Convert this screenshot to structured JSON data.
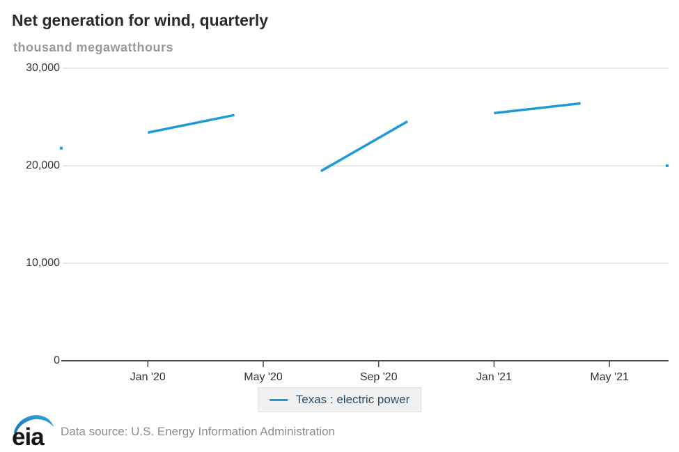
{
  "header": {
    "title": "Net generation for wind, quarterly",
    "unit_label": "thousand megawatthours"
  },
  "chart_data": {
    "type": "line",
    "title": "Net generation for wind, quarterly",
    "ylabel": "thousand megawatthours",
    "xlabel": "",
    "ylim": [
      0,
      30000
    ],
    "grid": "horizontal",
    "legend_position": "bottom-center",
    "y_ticks": [
      {
        "value": 30000,
        "label": "30,000"
      },
      {
        "value": 20000,
        "label": "20,000"
      },
      {
        "value": 10000,
        "label": "10,000"
      },
      {
        "value": 0,
        "label": "0"
      }
    ],
    "x_axis": {
      "unit": "months since Oct 2019",
      "range_months": [
        0,
        21
      ],
      "ticks": [
        {
          "month_index": 3,
          "label": "Jan '20"
        },
        {
          "month_index": 7,
          "label": "May '20"
        },
        {
          "month_index": 11,
          "label": "Sep '20"
        },
        {
          "month_index": 15,
          "label": "Jan '21"
        },
        {
          "month_index": 19,
          "label": "May '21"
        }
      ]
    },
    "series": [
      {
        "name": "Texas : electric power",
        "color": "#1e9bd7",
        "points": [
          {
            "period": "2019-Q4",
            "month_index": 0,
            "value": 21800
          },
          {
            "period": "2020-Q1",
            "month_index": 3,
            "value": 23400
          },
          {
            "period": "2020-Q2",
            "month_index": 6,
            "value": 25200
          },
          {
            "period": "2020-Q3",
            "month_index": 9,
            "value": 19450
          },
          {
            "period": "2020-Q4",
            "month_index": 12,
            "value": 24550
          },
          {
            "period": "2021-Q1",
            "month_index": 15,
            "value": 25400
          },
          {
            "period": "2021-Q2",
            "month_index": 18,
            "value": 26400
          },
          {
            "period": "2021-Q3",
            "month_index": 21,
            "value": 20000
          }
        ],
        "drawn_segments": [
          [
            1,
            2
          ],
          [
            3,
            4
          ],
          [
            5,
            6
          ]
        ],
        "isolated_points": [
          0,
          7
        ]
      }
    ]
  },
  "legend": {
    "label": "Texas : electric power"
  },
  "footer": {
    "logo_text": "eia",
    "data_source": "Data source: U.S. Energy Information Administration"
  },
  "colors": {
    "line": "#1e9bd7",
    "title": "#2b2b2b",
    "subtitle": "#9a9a9a",
    "axis": "#4d4d4d",
    "gridline": "#d9d9d9",
    "tick_label": "#333333",
    "legend_text": "#2a4d68",
    "legend_bg": "#f1f1f1",
    "legend_border": "#e2e2e2",
    "source_text": "#8c8c8c",
    "logo_text_color": "#161616",
    "logo_swoosh_dark": "#1a6fb0",
    "logo_swoosh_light": "#2fa8e1"
  }
}
